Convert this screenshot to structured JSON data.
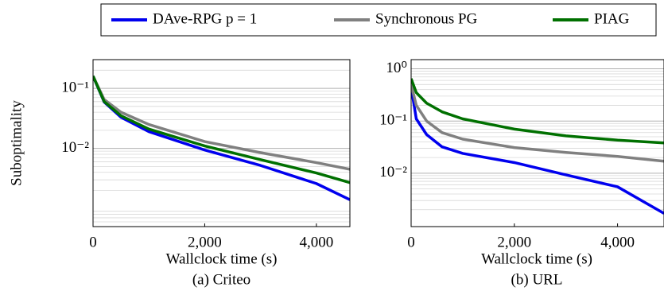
{
  "legend": {
    "position": "top"
  },
  "chart_data": [
    {
      "type": "line",
      "log_y": true,
      "grid": true,
      "minor_grid": true,
      "ylabel": "Suboptimality",
      "xlabel": "Wallclock time (s)",
      "caption": "(a) Criteo",
      "x": [
        0,
        200,
        500,
        1000,
        2000,
        3000,
        4000,
        4600
      ],
      "xlim": [
        0,
        4600
      ],
      "ylim": [
        0.0005,
        0.3
      ],
      "xticks": [
        0,
        {
          "value": 2000,
          "label": "2,000"
        },
        {
          "value": 4000,
          "label": "4,000"
        }
      ],
      "yticks": [
        {
          "value": 0.1,
          "label": "10⁻¹"
        },
        {
          "value": 0.01,
          "label": "10⁻²"
        }
      ],
      "series": [
        {
          "name": "DAve-RPG p = 1",
          "color": "#0000ee",
          "values": [
            0.16,
            0.059,
            0.033,
            0.019,
            0.0094,
            0.0052,
            0.0026,
            0.0014
          ]
        },
        {
          "name": "Synchronous PG",
          "color": "#808080",
          "values": [
            0.16,
            0.065,
            0.04,
            0.025,
            0.013,
            0.0085,
            0.0058,
            0.0045
          ]
        },
        {
          "name": "PIAG",
          "color": "#007000",
          "values": [
            0.16,
            0.06,
            0.035,
            0.021,
            0.011,
            0.0065,
            0.0039,
            0.0027
          ]
        }
      ]
    },
    {
      "type": "line",
      "log_y": true,
      "grid": true,
      "minor_grid": true,
      "xlabel": "Wallclock time (s)",
      "caption": "(b) URL",
      "x": [
        0,
        100,
        300,
        600,
        1000,
        2000,
        3000,
        4000,
        4900
      ],
      "xlim": [
        0,
        4900
      ],
      "ylim": [
        0.00095,
        1.5
      ],
      "xticks": [
        0,
        {
          "value": 2000,
          "label": "2,000"
        },
        {
          "value": 4000,
          "label": "4,000"
        }
      ],
      "yticks": [
        {
          "value": 1,
          "label": "10⁰"
        },
        {
          "value": 0.1,
          "label": "10⁻¹"
        },
        {
          "value": 0.01,
          "label": "10⁻²"
        }
      ],
      "series": [
        {
          "color": "#0000ee",
          "values": [
            0.45,
            0.11,
            0.055,
            0.032,
            0.024,
            0.016,
            0.0093,
            0.0055,
            0.0017
          ]
        },
        {
          "color": "#808080",
          "values": [
            0.5,
            0.2,
            0.1,
            0.06,
            0.045,
            0.031,
            0.025,
            0.021,
            0.017
          ]
        },
        {
          "color": "#007000",
          "values": [
            0.65,
            0.35,
            0.22,
            0.15,
            0.11,
            0.07,
            0.052,
            0.043,
            0.038
          ]
        }
      ]
    }
  ]
}
